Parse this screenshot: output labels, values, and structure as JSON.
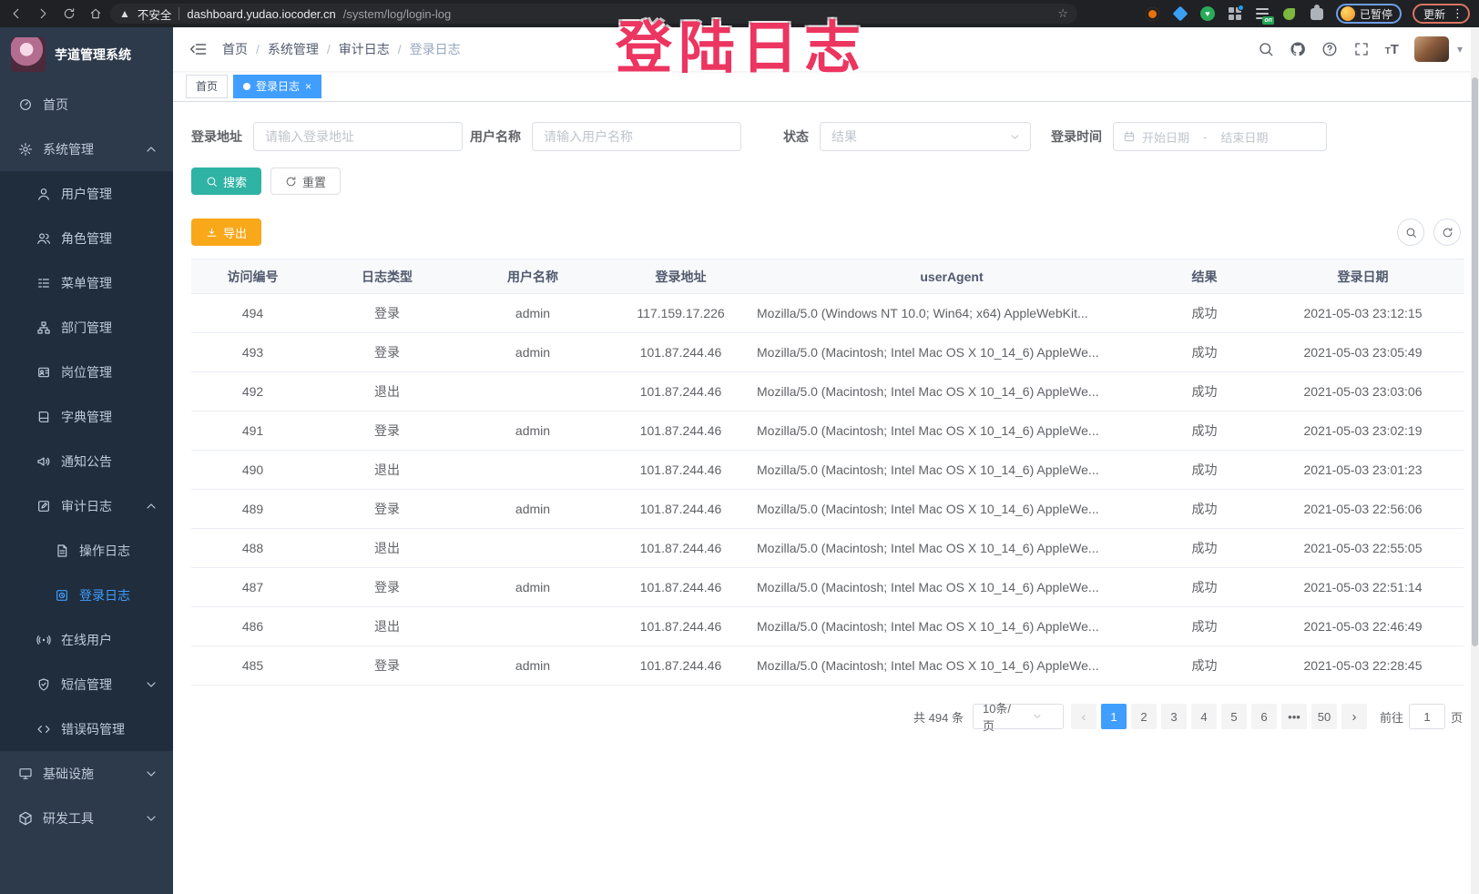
{
  "colors": {
    "accent": "#409eff",
    "search_button": "#2fb3a5",
    "export_button": "#f9a819",
    "sidebar_bg": "#2d3a4b",
    "submenu_bg": "#1f2d3d",
    "watermark": "#ec3560"
  },
  "browser": {
    "security_label": "不安全",
    "url_host": "dashboard.yudao.iocoder.cn",
    "url_path": "/system/log/login-log",
    "profile_badge": "已暂停",
    "update_button": "更新"
  },
  "watermark": "登陆日志",
  "icons": {
    "breadcrumb_separator": "/",
    "caret_down": "▾",
    "tab_close": "×",
    "kebab": "⋮",
    "star": "☆",
    "warning": "▲",
    "prev": "‹",
    "next": "›",
    "heart": "♥"
  },
  "sidebar": {
    "title": "芋道管理系统",
    "items": [
      {
        "label": "首页",
        "icon": "dashboard",
        "level": 0
      },
      {
        "label": "系统管理",
        "icon": "gear",
        "level": 0,
        "chevron": "up"
      },
      {
        "label": "用户管理",
        "icon": "user",
        "level": 1,
        "sub": true
      },
      {
        "label": "角色管理",
        "icon": "users",
        "level": 1,
        "sub": true
      },
      {
        "label": "菜单管理",
        "icon": "menu-list",
        "level": 1,
        "sub": true
      },
      {
        "label": "部门管理",
        "icon": "org-tree",
        "level": 1,
        "sub": true
      },
      {
        "label": "岗位管理",
        "icon": "id-badge",
        "level": 1,
        "sub": true
      },
      {
        "label": "字典管理",
        "icon": "dictionary",
        "level": 1,
        "sub": true
      },
      {
        "label": "通知公告",
        "icon": "announcement",
        "level": 1,
        "sub": true
      },
      {
        "label": "审计日志",
        "icon": "audit-log",
        "level": 1,
        "sub": true,
        "chevron": "up"
      },
      {
        "label": "操作日志",
        "icon": "operation-log",
        "level": 2,
        "sub": true
      },
      {
        "label": "登录日志",
        "icon": "login-log",
        "level": 2,
        "sub": true,
        "active": true
      },
      {
        "label": "在线用户",
        "icon": "online-users",
        "level": 1,
        "sub": true
      },
      {
        "label": "短信管理",
        "icon": "sms",
        "level": 1,
        "sub": true,
        "chevron": "down"
      },
      {
        "label": "错误码管理",
        "icon": "error-code",
        "level": 1,
        "sub": true
      },
      {
        "label": "基础设施",
        "icon": "infrastructure",
        "level": 0,
        "chevron": "down"
      },
      {
        "label": "研发工具",
        "icon": "dev-tools",
        "level": 0,
        "chevron": "down"
      }
    ]
  },
  "header": {
    "breadcrumbs": [
      "首页",
      "系统管理",
      "审计日志",
      "登录日志"
    ]
  },
  "tabs": [
    {
      "label": "首页",
      "active": false
    },
    {
      "label": "登录日志",
      "active": true,
      "closable": true
    }
  ],
  "filters": {
    "login_address": {
      "label": "登录地址",
      "placeholder": "请输入登录地址"
    },
    "username": {
      "label": "用户名称",
      "placeholder": "请输入用户名称"
    },
    "status": {
      "label": "状态",
      "placeholder": "结果"
    },
    "login_time": {
      "label": "登录时间",
      "start_placeholder": "开始日期",
      "separator": "-",
      "end_placeholder": "结束日期"
    },
    "search_button": "搜索",
    "reset_button": "重置"
  },
  "toolbar": {
    "export_button": "导出"
  },
  "table": {
    "columns": [
      "访问编号",
      "日志类型",
      "用户名称",
      "登录地址",
      "userAgent",
      "结果",
      "登录日期"
    ],
    "rows": [
      [
        "494",
        "登录",
        "admin",
        "117.159.17.226",
        "Mozilla/5.0 (Windows NT 10.0; Win64; x64) AppleWebKit...",
        "成功",
        "2021-05-03 23:12:15"
      ],
      [
        "493",
        "登录",
        "admin",
        "101.87.244.46",
        "Mozilla/5.0 (Macintosh; Intel Mac OS X 10_14_6) AppleWe...",
        "成功",
        "2021-05-03 23:05:49"
      ],
      [
        "492",
        "退出",
        "",
        "101.87.244.46",
        "Mozilla/5.0 (Macintosh; Intel Mac OS X 10_14_6) AppleWe...",
        "成功",
        "2021-05-03 23:03:06"
      ],
      [
        "491",
        "登录",
        "admin",
        "101.87.244.46",
        "Mozilla/5.0 (Macintosh; Intel Mac OS X 10_14_6) AppleWe...",
        "成功",
        "2021-05-03 23:02:19"
      ],
      [
        "490",
        "退出",
        "",
        "101.87.244.46",
        "Mozilla/5.0 (Macintosh; Intel Mac OS X 10_14_6) AppleWe...",
        "成功",
        "2021-05-03 23:01:23"
      ],
      [
        "489",
        "登录",
        "admin",
        "101.87.244.46",
        "Mozilla/5.0 (Macintosh; Intel Mac OS X 10_14_6) AppleWe...",
        "成功",
        "2021-05-03 22:56:06"
      ],
      [
        "488",
        "退出",
        "",
        "101.87.244.46",
        "Mozilla/5.0 (Macintosh; Intel Mac OS X 10_14_6) AppleWe...",
        "成功",
        "2021-05-03 22:55:05"
      ],
      [
        "487",
        "登录",
        "admin",
        "101.87.244.46",
        "Mozilla/5.0 (Macintosh; Intel Mac OS X 10_14_6) AppleWe...",
        "成功",
        "2021-05-03 22:51:14"
      ],
      [
        "486",
        "退出",
        "",
        "101.87.244.46",
        "Mozilla/5.0 (Macintosh; Intel Mac OS X 10_14_6) AppleWe...",
        "成功",
        "2021-05-03 22:46:49"
      ],
      [
        "485",
        "登录",
        "admin",
        "101.87.244.46",
        "Mozilla/5.0 (Macintosh; Intel Mac OS X 10_14_6) AppleWe...",
        "成功",
        "2021-05-03 22:28:45"
      ]
    ]
  },
  "pagination": {
    "total_text": "共 494 条",
    "page_size": "10条/页",
    "pages": [
      "1",
      "2",
      "3",
      "4",
      "5",
      "6",
      "•••",
      "50"
    ],
    "active_page": "1",
    "goto_label": "前往",
    "goto_value": "1",
    "goto_suffix": "页"
  }
}
